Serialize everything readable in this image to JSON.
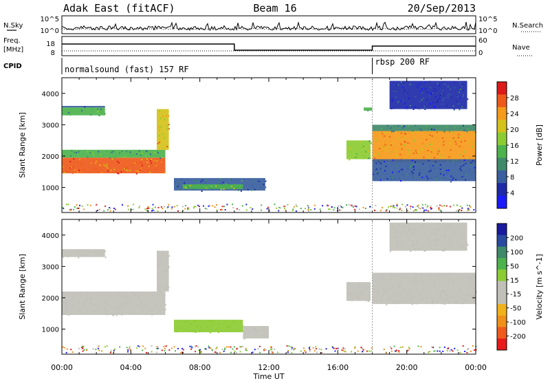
{
  "header": {
    "radar": "Adak East (fitACF)",
    "beam": "Beam 16",
    "date": "20/Sep/2013"
  },
  "noise_panel": {
    "left_label": "N.Sky",
    "right_label": "N.Search",
    "left_ticks": [
      "10^5",
      "10^0"
    ],
    "right_ticks": [
      "10^5",
      "10^0"
    ]
  },
  "freq_panel": {
    "left_label_1": "Freq.",
    "left_label_2": "[MHz]",
    "right_label": "Nave",
    "left_ticks": [
      "18",
      "8"
    ],
    "right_ticks": [
      "60",
      "0"
    ]
  },
  "cpid_panel": {
    "label": "CPID",
    "segments": [
      {
        "text": "normalsound (fast) 157 RF",
        "start_hour": 0,
        "end_hour": 18
      },
      {
        "text": "rbsp 200 RF",
        "start_hour": 18,
        "end_hour": 24
      }
    ]
  },
  "colors": {
    "power_scale": [
      "#1a1aff",
      "#1e2aa8",
      "#3a5fa0",
      "#3f8a6a",
      "#4db34d",
      "#8ccc33",
      "#d4c21a",
      "#f59a1a",
      "#ee5a1a",
      "#dd1a1a"
    ],
    "velocity_scale": [
      "#e81a1a",
      "#f05a1a",
      "#f0901a",
      "#f0b21a",
      "#c0c0b8",
      "#c0c0b8",
      "#8ccc33",
      "#4db34d",
      "#3f8a6a",
      "#2a4aa0",
      "#1a1a9f"
    ],
    "ground_scatter": "#b9b9b2"
  },
  "chart_data": [
    {
      "type": "heatmap",
      "name": "power",
      "xlabel": "",
      "ylabel": "Slant Range [km]",
      "xlim": [
        0,
        24
      ],
      "ylim": [
        200,
        4500
      ],
      "yticks": [
        "1000",
        "2000",
        "3000",
        "4000"
      ],
      "colorbar": {
        "label": "Power [dB]",
        "ticks": [
          "4",
          "8",
          "12",
          "16",
          "20",
          "24",
          "28"
        ],
        "range": [
          0,
          30
        ]
      },
      "regions": [
        {
          "t0": 0.0,
          "t1": 2.5,
          "r0": 3300,
          "r1": 3550,
          "v": 12
        },
        {
          "t0": 0.0,
          "t1": 2.5,
          "r0": 3550,
          "r1": 3600,
          "v": 6
        },
        {
          "t0": 0.0,
          "t1": 6.0,
          "r0": 1450,
          "r1": 1950,
          "v": 24
        },
        {
          "t0": 0.0,
          "t1": 6.0,
          "r0": 1950,
          "r1": 2200,
          "v": 12
        },
        {
          "t0": 5.5,
          "t1": 6.2,
          "r0": 2200,
          "r1": 3500,
          "v": 20
        },
        {
          "t0": 6.5,
          "t1": 11.8,
          "r0": 900,
          "r1": 1300,
          "v": 8
        },
        {
          "t0": 7.0,
          "t1": 10.5,
          "r0": 950,
          "r1": 1100,
          "v": 14
        },
        {
          "t0": 16.5,
          "t1": 17.9,
          "r0": 1900,
          "r1": 2500,
          "v": 16
        },
        {
          "t0": 18.0,
          "t1": 24.0,
          "r0": 1800,
          "r1": 2800,
          "v": 22
        },
        {
          "t0": 18.0,
          "t1": 24.0,
          "r0": 1200,
          "r1": 1900,
          "v": 6
        },
        {
          "t0": 18.0,
          "t1": 24.0,
          "r0": 2800,
          "r1": 3000,
          "v": 10
        },
        {
          "t0": 19.0,
          "t1": 23.5,
          "r0": 3500,
          "r1": 4400,
          "v": 5
        },
        {
          "t0": 17.5,
          "t1": 18.0,
          "r0": 3450,
          "r1": 3550,
          "v": 14
        }
      ]
    },
    {
      "type": "heatmap",
      "name": "velocity",
      "xlabel": "Time UT",
      "ylabel": "Slant Range [km]",
      "xlim": [
        0,
        24
      ],
      "ylim": [
        200,
        4500
      ],
      "yticks": [
        "1000",
        "2000",
        "3000",
        "4000"
      ],
      "xticks": [
        "00:00",
        "04:00",
        "08:00",
        "12:00",
        "16:00",
        "20:00",
        "00:00"
      ],
      "colorbar": {
        "label": "Velocity [m s^-1]",
        "ticks": [
          "200",
          "100",
          "50",
          "15",
          "-15",
          "-50",
          "-100",
          "-200"
        ],
        "range": [
          -250,
          250
        ]
      },
      "regions": [
        {
          "t0": 0.0,
          "t1": 2.5,
          "r0": 3300,
          "r1": 3550,
          "v": 0
        },
        {
          "t0": 0.0,
          "t1": 6.0,
          "r0": 1450,
          "r1": 2200,
          "v": 0
        },
        {
          "t0": 5.5,
          "t1": 6.2,
          "r0": 2200,
          "r1": 3500,
          "v": -30
        },
        {
          "t0": 6.5,
          "t1": 10.5,
          "r0": 900,
          "r1": 1300,
          "v": 40
        },
        {
          "t0": 10.5,
          "t1": 12.0,
          "r0": 700,
          "r1": 1100,
          "v": 0
        },
        {
          "t0": 16.5,
          "t1": 17.9,
          "r0": 1900,
          "r1": 2500,
          "v": 0
        },
        {
          "t0": 18.0,
          "t1": 24.0,
          "r0": 1800,
          "r1": 2800,
          "v": 0
        },
        {
          "t0": 19.0,
          "t1": 23.5,
          "r0": 3500,
          "r1": 4400,
          "v": 0
        }
      ]
    }
  ]
}
